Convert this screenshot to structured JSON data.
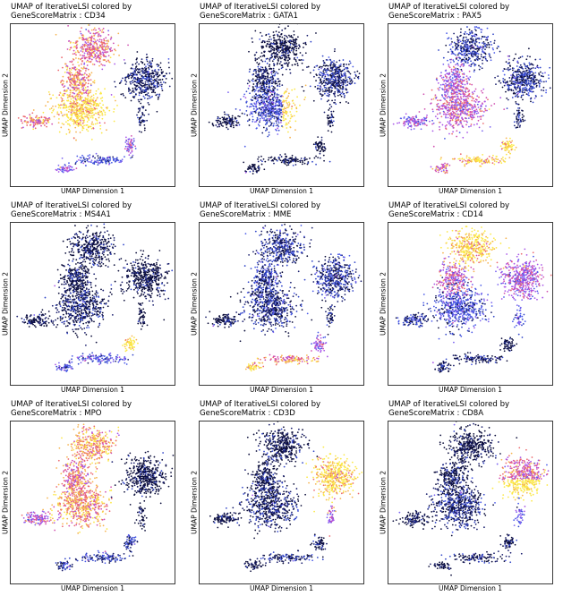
{
  "figure": {
    "x_axis_label": "UMAP Dimension 1",
    "y_axis_label": "UMAP Dimension 2"
  },
  "colors": {
    "palette": [
      "#0b0d3a",
      "#1a1f6e",
      "#3045c8",
      "#4a5ae8",
      "#7a62f0",
      "#a855e8",
      "#d04fb0",
      "#ec6a70",
      "#f6b450",
      "#fbe846"
    ]
  },
  "chart_data": [
    {
      "type": "scatter",
      "title": "UMAP of IterativeLSI colored by\nGeneScoreMatrix : CD34",
      "xlabel": "UMAP Dimension 1",
      "ylabel": "UMAP Dimension 2",
      "cluster_expression": {
        "top": 0.72,
        "upper_mid": 0.74,
        "central": 0.92,
        "left_arm": 0.75,
        "right_blob": 0.12,
        "tail": 0.3,
        "tail_end": 0.55,
        "bottom": 0.5
      }
    },
    {
      "type": "scatter",
      "title": "UMAP of IterativeLSI colored by\nGeneScoreMatrix : GATA1",
      "xlabel": "UMAP Dimension 1",
      "ylabel": "UMAP Dimension 2",
      "cluster_expression": {
        "top": 0.02,
        "upper_mid": 0.12,
        "central": 0.28,
        "left_arm": 0.04,
        "right_blob": 0.14,
        "tail": 0.04,
        "tail_end": 0.05,
        "bottom": 0.04,
        "right_edge": 0.92
      }
    },
    {
      "type": "scatter",
      "title": "UMAP of IterativeLSI colored by\nGeneScoreMatrix : PAX5",
      "xlabel": "UMAP Dimension 1",
      "ylabel": "UMAP Dimension 2",
      "cluster_expression": {
        "top": 0.22,
        "upper_mid": 0.55,
        "central": 0.62,
        "left_arm": 0.5,
        "right_blob": 0.18,
        "tail": 0.88,
        "tail_end": 0.95,
        "bottom": 0.7
      }
    },
    {
      "type": "scatter",
      "title": "UMAP of IterativeLSI colored by\nGeneScoreMatrix : MS4A1",
      "xlabel": "UMAP Dimension 1",
      "ylabel": "UMAP Dimension 2",
      "cluster_expression": {
        "top": 0.06,
        "upper_mid": 0.08,
        "central": 0.1,
        "left_arm": 0.06,
        "right_blob": 0.03,
        "tail": 0.35,
        "tail_end": 0.97,
        "bottom": 0.3
      }
    },
    {
      "type": "scatter",
      "title": "UMAP of IterativeLSI colored by\nGeneScoreMatrix : MME",
      "xlabel": "UMAP Dimension 1",
      "ylabel": "UMAP Dimension 2",
      "cluster_expression": {
        "top": 0.18,
        "upper_mid": 0.2,
        "central": 0.16,
        "left_arm": 0.08,
        "right_blob": 0.2,
        "tail": 0.75,
        "tail_end": 0.55,
        "bottom": 0.9
      }
    },
    {
      "type": "scatter",
      "title": "UMAP of IterativeLSI colored by\nGeneScoreMatrix : CD14",
      "xlabel": "UMAP Dimension 1",
      "ylabel": "UMAP Dimension 2",
      "cluster_expression": {
        "top": 0.93,
        "upper_mid": 0.62,
        "central": 0.3,
        "left_arm": 0.22,
        "right_blob": 0.55,
        "tail": 0.12,
        "tail_end": 0.08,
        "bottom": 0.1
      }
    },
    {
      "type": "scatter",
      "title": "UMAP of IterativeLSI colored by\nGeneScoreMatrix : MPO",
      "xlabel": "UMAP Dimension 1",
      "ylabel": "UMAP Dimension 2",
      "cluster_expression": {
        "top": 0.82,
        "upper_mid": 0.72,
        "central": 0.8,
        "left_arm": 0.55,
        "right_blob": 0.02,
        "tail": 0.22,
        "tail_end": 0.2,
        "bottom": 0.22
      }
    },
    {
      "type": "scatter",
      "title": "UMAP of IterativeLSI colored by\nGeneScoreMatrix : CD3D",
      "xlabel": "UMAP Dimension 1",
      "ylabel": "UMAP Dimension 2",
      "cluster_expression": {
        "top": 0.03,
        "upper_mid": 0.08,
        "central": 0.12,
        "left_arm": 0.04,
        "right_blob": 0.93,
        "tail": 0.14,
        "tail_end": 0.08,
        "bottom": 0.06
      }
    },
    {
      "type": "scatter",
      "title": "UMAP of IterativeLSI colored by\nGeneScoreMatrix : CD8A",
      "xlabel": "UMAP Dimension 1",
      "ylabel": "UMAP Dimension 2",
      "cluster_expression": {
        "top": 0.03,
        "upper_mid": 0.08,
        "central": 0.14,
        "left_arm": 0.04,
        "right_blob": 0.68,
        "right_blob_lower": 0.95,
        "tail": 0.12,
        "tail_end": 0.06,
        "bottom": 0.06
      }
    }
  ]
}
